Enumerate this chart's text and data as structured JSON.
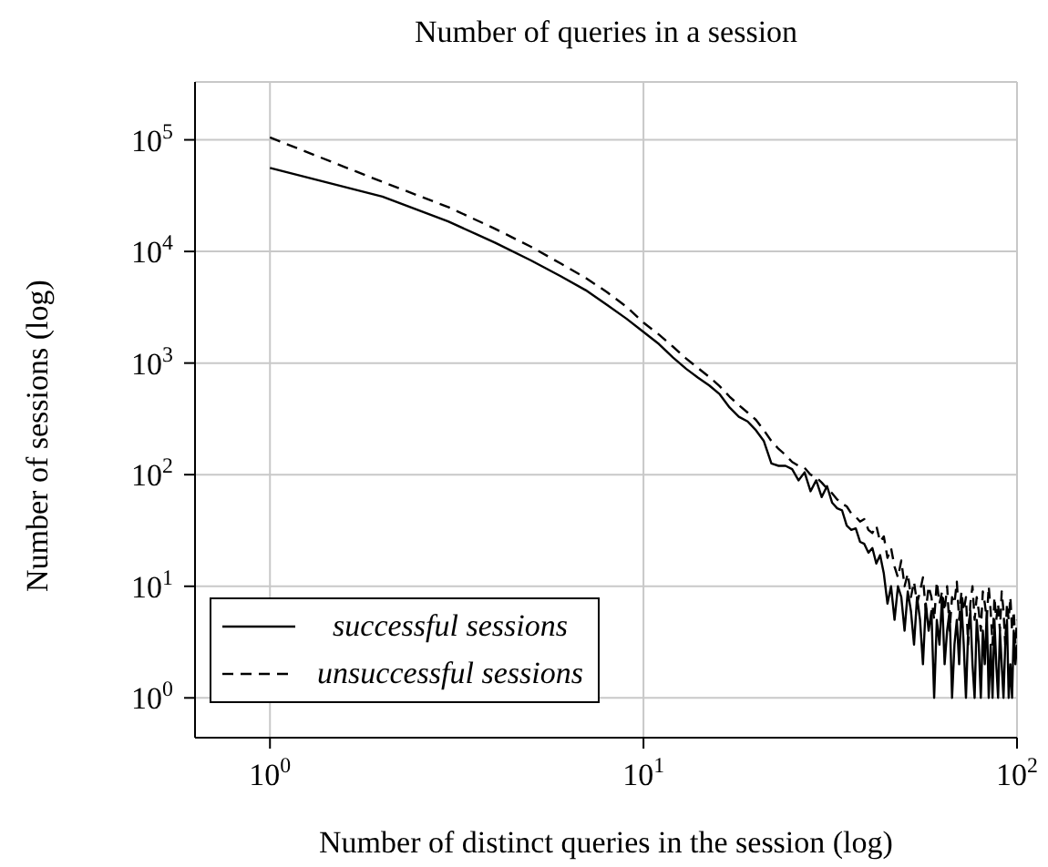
{
  "chart_data": {
    "type": "line",
    "title": "Number of queries in a session",
    "xlabel": "Number of distinct queries in the session (log)",
    "ylabel": "Number of sessions (log)",
    "log": "xy",
    "grid": true,
    "legend": "bottom left",
    "marker": "none",
    "xlim": [
      0.63,
      100
    ],
    "ylim": [
      0.44,
      330000
    ],
    "xticks": [
      {
        "value": 1,
        "label": "10$^{0}$"
      },
      {
        "value": 10,
        "label": "10$^{1}$"
      },
      {
        "value": 100,
        "label": "10$^{2}$"
      }
    ],
    "yticks": [
      {
        "value": 1,
        "label": "10$^{0}$"
      },
      {
        "value": 10,
        "label": "10$^{1}$"
      },
      {
        "value": 100,
        "label": "10$^{2}$"
      },
      {
        "value": 1000,
        "label": "10$^{3}$"
      },
      {
        "value": 10000,
        "label": "10$^{4}$"
      },
      {
        "value": 100000,
        "label": "10$^{5}$"
      }
    ],
    "x": [
      1,
      2,
      3,
      4,
      5,
      6,
      7,
      8,
      9,
      10,
      11,
      12,
      13,
      14,
      15,
      16,
      17,
      18,
      19,
      20,
      21,
      22,
      23,
      24,
      25,
      26,
      27,
      28,
      29,
      30,
      31,
      32,
      33,
      34,
      35,
      36,
      37,
      38,
      39,
      40,
      41,
      42,
      43,
      44,
      45,
      46,
      47,
      48,
      49,
      50,
      51,
      52,
      53,
      54,
      55,
      56,
      57,
      58,
      59,
      60,
      61,
      62,
      63,
      64,
      65,
      66,
      67,
      68,
      69,
      70,
      71,
      72,
      73,
      74,
      75,
      76,
      77,
      78,
      79,
      80,
      81,
      82,
      83,
      84,
      85,
      86,
      87,
      88,
      89,
      90,
      91,
      92,
      93,
      94,
      95,
      96,
      97,
      98,
      99,
      100
    ],
    "series": [
      {
        "name": "successful sessions",
        "color": "#000000",
        "line_style": "solid",
        "values": [
          56000,
          31000,
          18600,
          12000,
          8300,
          6000,
          4500,
          3300,
          2500,
          1900,
          1480,
          1120,
          890,
          740,
          630,
          525,
          400,
          330,
          300,
          250,
          200,
          126,
          120,
          120,
          112,
          89,
          105,
          71,
          89,
          63,
          79,
          56,
          50,
          48,
          35,
          32,
          33,
          25,
          24,
          20,
          22,
          16,
          19,
          13,
          7,
          10,
          5,
          10,
          8,
          4,
          9,
          6,
          3,
          8,
          5,
          2,
          7,
          4,
          6,
          1,
          5,
          3,
          8,
          2,
          4,
          6,
          1,
          3,
          5,
          2,
          7,
          3,
          1,
          4,
          6,
          2,
          1,
          5,
          3,
          1,
          4,
          2,
          6,
          1,
          3,
          1,
          5,
          2,
          1,
          4,
          2,
          1,
          3,
          5,
          1,
          2,
          1,
          4,
          2,
          3
        ]
      },
      {
        "name": "unsuccessful sessions",
        "color": "#000000",
        "line_style": "dashed",
        "values": [
          105000,
          42000,
          25000,
          16000,
          11000,
          7800,
          5800,
          4300,
          3200,
          2300,
          1800,
          1400,
          1100,
          900,
          750,
          620,
          500,
          420,
          360,
          310,
          250,
          200,
          170,
          150,
          130,
          120,
          115,
          100,
          95,
          85,
          75,
          68,
          60,
          55,
          52,
          45,
          42,
          38,
          40,
          32,
          30,
          35,
          25,
          28,
          18,
          22,
          15,
          12,
          17,
          10,
          13,
          8,
          11,
          7,
          9,
          12,
          6,
          10,
          8,
          5,
          11,
          7,
          9,
          6,
          10,
          4,
          8,
          7,
          11,
          5,
          9,
          6,
          8,
          3,
          7,
          10,
          5,
          8,
          6,
          4,
          9,
          7,
          5,
          10,
          6,
          3,
          8,
          5,
          7,
          4,
          9,
          6,
          3,
          7,
          5,
          8,
          4,
          6,
          3,
          5
        ]
      }
    ]
  }
}
